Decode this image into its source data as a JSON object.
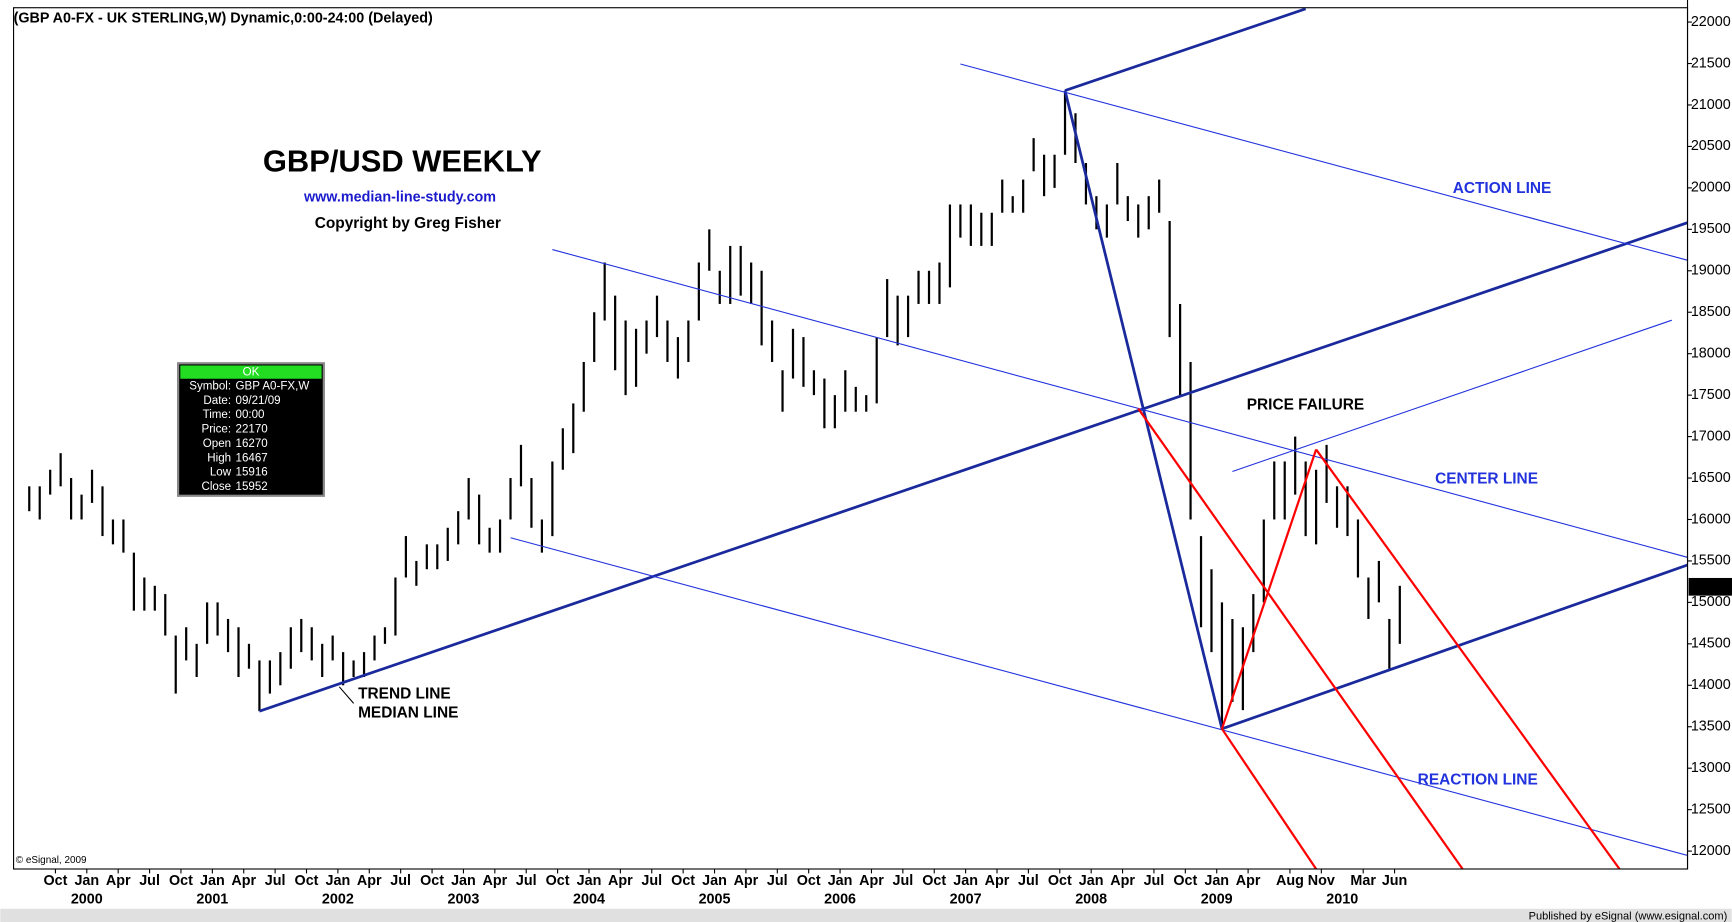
{
  "header": "(GBP A0-FX - UK STERLING,W) Dynamic,0:00-24:00 (Delayed)",
  "footer": "Published by eSignal (www.esignal.com)",
  "copyright_esignal": "© eSignal, 2009",
  "info_box": {
    "status": "OK",
    "rows": [
      [
        "Symbol:",
        "GBP A0-FX,W"
      ],
      [
        "Date:",
        "09/21/09"
      ],
      [
        "Time:",
        "00:00"
      ],
      [
        "Price:",
        "22170"
      ],
      [
        "Open",
        "16270"
      ],
      [
        "High",
        "16467"
      ],
      [
        "Low",
        "15916"
      ],
      [
        "Close",
        "15952"
      ]
    ]
  },
  "chart_data": {
    "type": "range",
    "title": "GBP/USD WEEKLY",
    "subtitle": "www.median-line-study.com",
    "credit": "Copyright by Greg Fisher",
    "color": "#000000",
    "last_price": 15188,
    "xlim": [
      "1999-06",
      "2012-10"
    ],
    "ylim": [
      11784,
      22173
    ],
    "yticks": [
      12000,
      12500,
      13000,
      13500,
      14000,
      14500,
      15000,
      15500,
      16000,
      16500,
      17000,
      17500,
      18000,
      18500,
      19000,
      19500,
      20000,
      20500,
      21000,
      21500,
      22000
    ],
    "xticks": [
      {
        "value": "1999-10",
        "label": "Oct"
      },
      {
        "value": "2000-01",
        "label": "Jan"
      },
      {
        "value": "2000-04",
        "label": "Apr"
      },
      {
        "value": "2000-07",
        "label": "Jul"
      },
      {
        "value": "2000-10",
        "label": "Oct"
      },
      {
        "value": "2001-01",
        "label": "Jan"
      },
      {
        "value": "2001-04",
        "label": "Apr"
      },
      {
        "value": "2001-07",
        "label": "Jul"
      },
      {
        "value": "2001-10",
        "label": "Oct"
      },
      {
        "value": "2002-01",
        "label": "Jan"
      },
      {
        "value": "2002-04",
        "label": "Apr"
      },
      {
        "value": "2002-07",
        "label": "Jul"
      },
      {
        "value": "2002-10",
        "label": "Oct"
      },
      {
        "value": "2003-01",
        "label": "Jan"
      },
      {
        "value": "2003-04",
        "label": "Apr"
      },
      {
        "value": "2003-07",
        "label": "Jul"
      },
      {
        "value": "2003-10",
        "label": "Oct"
      },
      {
        "value": "2004-01",
        "label": "Jan"
      },
      {
        "value": "2004-04",
        "label": "Apr"
      },
      {
        "value": "2004-07",
        "label": "Jul"
      },
      {
        "value": "2004-10",
        "label": "Oct"
      },
      {
        "value": "2005-01",
        "label": "Jan"
      },
      {
        "value": "2005-04",
        "label": "Apr"
      },
      {
        "value": "2005-07",
        "label": "Jul"
      },
      {
        "value": "2005-10",
        "label": "Oct"
      },
      {
        "value": "2006-01",
        "label": "Jan"
      },
      {
        "value": "2006-04",
        "label": "Apr"
      },
      {
        "value": "2006-07",
        "label": "Jul"
      },
      {
        "value": "2006-10",
        "label": "Oct"
      },
      {
        "value": "2007-01",
        "label": "Jan"
      },
      {
        "value": "2007-04",
        "label": "Apr"
      },
      {
        "value": "2007-07",
        "label": "Jul"
      },
      {
        "value": "2007-10",
        "label": "Oct"
      },
      {
        "value": "2008-01",
        "label": "Jan"
      },
      {
        "value": "2008-04",
        "label": "Apr"
      },
      {
        "value": "2008-07",
        "label": "Jul"
      },
      {
        "value": "2008-10",
        "label": "Oct"
      },
      {
        "value": "2009-01",
        "label": "Jan"
      },
      {
        "value": "2009-04",
        "label": "Apr"
      },
      {
        "value": "2009-08",
        "label": "Aug"
      },
      {
        "value": "2009-11",
        "label": "Nov"
      },
      {
        "value": "2010-03",
        "label": "Mar"
      },
      {
        "value": "2010-06",
        "label": "Jun"
      }
    ],
    "year_ticks": [
      {
        "value": "2000-01",
        "label": "2000"
      },
      {
        "value": "2001-01",
        "label": "2001"
      },
      {
        "value": "2002-01",
        "label": "2002"
      },
      {
        "value": "2003-01",
        "label": "2003"
      },
      {
        "value": "2004-01",
        "label": "2004"
      },
      {
        "value": "2005-01",
        "label": "2005"
      },
      {
        "value": "2006-01",
        "label": "2006"
      },
      {
        "value": "2007-01",
        "label": "2007"
      },
      {
        "value": "2008-01",
        "label": "2008"
      },
      {
        "value": "2009-01",
        "label": "2009"
      },
      {
        "value": "2010-01",
        "label": "2010"
      }
    ],
    "x": [
      "1999-07",
      "1999-08",
      "1999-09",
      "1999-10",
      "1999-11",
      "1999-12",
      "2000-01",
      "2000-02",
      "2000-03",
      "2000-04",
      "2000-05",
      "2000-06",
      "2000-07",
      "2000-08",
      "2000-09",
      "2000-10",
      "2000-11",
      "2000-12",
      "2001-01",
      "2001-02",
      "2001-03",
      "2001-04",
      "2001-05",
      "2001-06",
      "2001-07",
      "2001-08",
      "2001-09",
      "2001-10",
      "2001-11",
      "2001-12",
      "2002-01",
      "2002-02",
      "2002-03",
      "2002-04",
      "2002-05",
      "2002-06",
      "2002-07",
      "2002-08",
      "2002-09",
      "2002-10",
      "2002-11",
      "2002-12",
      "2003-01",
      "2003-02",
      "2003-03",
      "2003-04",
      "2003-05",
      "2003-06",
      "2003-07",
      "2003-08",
      "2003-09",
      "2003-10",
      "2003-11",
      "2003-12",
      "2004-01",
      "2004-02",
      "2004-03",
      "2004-04",
      "2004-05",
      "2004-06",
      "2004-07",
      "2004-08",
      "2004-09",
      "2004-10",
      "2004-11",
      "2004-12",
      "2005-01",
      "2005-02",
      "2005-03",
      "2005-04",
      "2005-05",
      "2005-06",
      "2005-07",
      "2005-08",
      "2005-09",
      "2005-10",
      "2005-11",
      "2005-12",
      "2006-01",
      "2006-02",
      "2006-03",
      "2006-04",
      "2006-05",
      "2006-06",
      "2006-07",
      "2006-08",
      "2006-09",
      "2006-10",
      "2006-11",
      "2006-12",
      "2007-01",
      "2007-02",
      "2007-03",
      "2007-04",
      "2007-05",
      "2007-06",
      "2007-07",
      "2007-08",
      "2007-09",
      "2007-10",
      "2007-11",
      "2007-12",
      "2008-01",
      "2008-02",
      "2008-03",
      "2008-04",
      "2008-05",
      "2008-06",
      "2008-07",
      "2008-08",
      "2008-09",
      "2008-10",
      "2008-11",
      "2008-12",
      "2009-01",
      "2009-02",
      "2009-03",
      "2009-04",
      "2009-05",
      "2009-06",
      "2009-07",
      "2009-08",
      "2009-09",
      "2009-10",
      "2009-11",
      "2009-12",
      "2010-01",
      "2010-02",
      "2010-03",
      "2010-04",
      "2010-05",
      "2010-06"
    ],
    "low": [
      16100,
      16000,
      16300,
      16400,
      16000,
      16000,
      16200,
      15800,
      15700,
      15600,
      14900,
      14900,
      14900,
      14600,
      13900,
      14300,
      14100,
      14500,
      14600,
      14400,
      14100,
      14200,
      13688,
      13900,
      14000,
      14200,
      14400,
      14300,
      14100,
      14300,
      14000,
      14100,
      14100,
      14300,
      14500,
      14600,
      15300,
      15200,
      15400,
      15400,
      15500,
      15700,
      16000,
      15700,
      15600,
      15600,
      16000,
      16400,
      15900,
      15600,
      15800,
      16600,
      16800,
      17300,
      17900,
      18400,
      17800,
      17500,
      17600,
      18000,
      18200,
      17900,
      17700,
      17900,
      18400,
      19000,
      18600,
      18600,
      18700,
      18600,
      18100,
      17900,
      17300,
      17700,
      17600,
      17500,
      17100,
      17100,
      17300,
      17300,
      17300,
      17400,
      18200,
      18100,
      18200,
      18600,
      18600,
      18600,
      18800,
      19400,
      19300,
      19300,
      19300,
      19700,
      19700,
      19700,
      20200,
      19900,
      20000,
      20400,
      20300,
      19800,
      19500,
      19400,
      19800,
      19600,
      19400,
      19500,
      19700,
      18200,
      17500,
      16000,
      14700,
      14400,
      13475,
      13800,
      13700,
      14400,
      15000,
      16000,
      16000,
      16300,
      15800,
      15700,
      16200,
      15900,
      15800,
      15300,
      14800,
      15000,
      14200,
      14500
    ],
    "high": [
      16400,
      16400,
      16600,
      16800,
      16500,
      16300,
      16600,
      16400,
      16000,
      16000,
      15600,
      15300,
      15200,
      15100,
      14600,
      14700,
      14500,
      15000,
      15000,
      14800,
      14700,
      14500,
      14300,
      14300,
      14400,
      14700,
      14800,
      14700,
      14500,
      14600,
      14400,
      14300,
      14400,
      14600,
      14700,
      15300,
      15800,
      15500,
      15700,
      15700,
      15900,
      16100,
      16500,
      16300,
      15900,
      16000,
      16500,
      16900,
      16500,
      16000,
      16700,
      17100,
      17400,
      17900,
      18500,
      19100,
      18700,
      18400,
      18300,
      18400,
      18700,
      18400,
      18200,
      18400,
      19100,
      19500,
      19000,
      19300,
      19300,
      19100,
      19000,
      18400,
      17800,
      18300,
      18200,
      17800,
      17700,
      17500,
      17800,
      17600,
      17500,
      18200,
      18900,
      18700,
      18700,
      19000,
      19000,
      19100,
      19800,
      19800,
      19800,
      19700,
      19700,
      20100,
      19900,
      20100,
      20600,
      20400,
      20400,
      21174,
      20900,
      20300,
      19900,
      19800,
      20300,
      19900,
      19800,
      19900,
      20100,
      19600,
      18600,
      17900,
      15800,
      15400,
      15000,
      14800,
      14700,
      15100,
      16000,
      16700,
      16700,
      17000,
      16700,
      16600,
      16900,
      16400,
      16400,
      16000,
      15300,
      15500,
      14800,
      15200
    ],
    "lines": [
      {
        "color": "#1a2a9c",
        "width": 2.5,
        "points": [
          [
            "2001-05",
            13688
          ],
          [
            "2012-10",
            19602
          ]
        ]
      },
      {
        "color": "#1a2a9c",
        "width": 2.5,
        "points": [
          [
            "2007-10",
            21174
          ],
          [
            "2009-09",
            22160
          ]
        ]
      },
      {
        "color": "#1a2a9c",
        "width": 2.5,
        "points": [
          [
            "2009-01",
            13475
          ],
          [
            "2012-10",
            15473
          ]
        ]
      },
      {
        "color": "#1a2a9c",
        "width": 2.5,
        "points": [
          [
            "2007-10",
            21174
          ],
          [
            "2009-01",
            13475
          ]
        ]
      },
      {
        "color": "#2233dd",
        "width": 1,
        "points": [
          [
            "2006-12",
            21494
          ],
          [
            "2012-10",
            19110
          ]
        ]
      },
      {
        "color": "#2233dd",
        "width": 1,
        "points": [
          [
            "2003-09",
            19256
          ],
          [
            "2012-10",
            15526
          ]
        ]
      },
      {
        "color": "#2233dd",
        "width": 1,
        "points": [
          [
            "2003-05",
            15780
          ],
          [
            "2012-10",
            11930
          ]
        ]
      },
      {
        "color": "#2233dd",
        "width": 1,
        "points": [
          [
            "2009-02",
            16579
          ],
          [
            "2012-08",
            18404
          ]
        ]
      },
      {
        "color": "#ff0000",
        "width": 2,
        "points": [
          [
            "2008-05",
            17338
          ],
          [
            "2010-12",
            11784
          ]
        ]
      },
      {
        "color": "#ff0000",
        "width": 2,
        "points": [
          [
            "2009-01",
            13475
          ],
          [
            "2009-10",
            11784
          ]
        ]
      },
      {
        "color": "#ff0000",
        "width": 2,
        "points": [
          [
            "2009-01",
            13475
          ],
          [
            "2009-10",
            16845
          ]
        ]
      },
      {
        "color": "#ff0000",
        "width": 2,
        "points": [
          [
            "2009-10",
            16845
          ],
          [
            "2012-03",
            11784
          ]
        ]
      }
    ],
    "annotations": {
      "action": "ACTION LINE",
      "center": "CENTER LINE",
      "reaction": "REACTION LINE",
      "failure": "PRICE FAILURE",
      "trend": "TREND LINE",
      "median": "MEDIAN LINE"
    }
  }
}
